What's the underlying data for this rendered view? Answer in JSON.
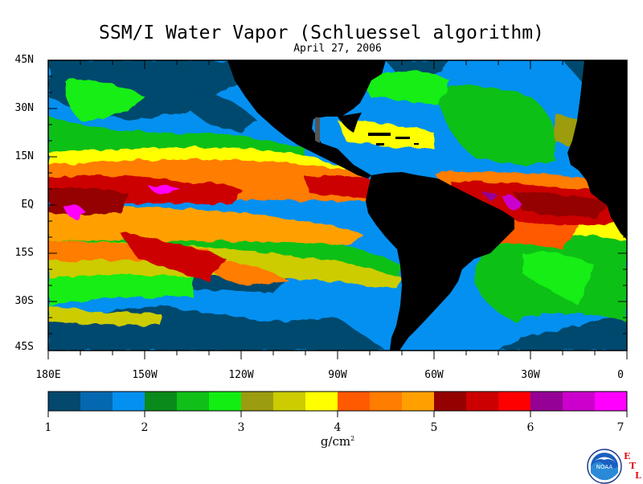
{
  "title": "SSM/I Water Vapor (Schluessel algorithm)",
  "date": "April 27, 2006",
  "latitude_labels": [
    "45N",
    "30N",
    "15N",
    "EQ",
    "15S",
    "30S",
    "45S"
  ],
  "longitude_labels": [
    "180E",
    "150W",
    "120W",
    "90W",
    "60W",
    "30W",
    "0"
  ],
  "colorbar": {
    "tick_labels": [
      "1",
      "2",
      "3",
      "4",
      "5",
      "6",
      "7"
    ],
    "units_base": "g/cm",
    "units_exp": "2",
    "colors": [
      "#04486e",
      "#0468b0",
      "#0490f0",
      "#0a8a1a",
      "#10c018",
      "#12ee12",
      "#9c9c10",
      "#cccc00",
      "#ffff00",
      "#ff5a00",
      "#ff7d00",
      "#ffa000",
      "#950000",
      "#cc0000",
      "#ff0000",
      "#950095",
      "#cc00cc",
      "#ff00ff"
    ]
  },
  "logo": {
    "noaa_text": "NOAA",
    "etl_letters": [
      "E",
      "T",
      "L"
    ]
  },
  "colors": {
    "land": "#000000",
    "low_vapor": "#04486e",
    "mid_vapor": "#10c018",
    "high_vapor": "#ff0000"
  }
}
